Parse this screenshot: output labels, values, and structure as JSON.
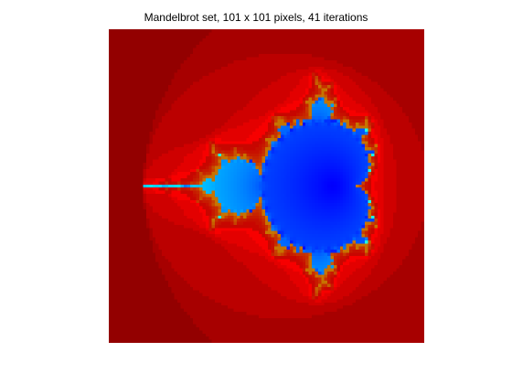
{
  "figure": {
    "title": "Mandelbrot set, 101 x 101 pixels, 41 iterations"
  },
  "image": {
    "grid_size": 101,
    "iterations": 41,
    "colormap": "jet"
  }
}
